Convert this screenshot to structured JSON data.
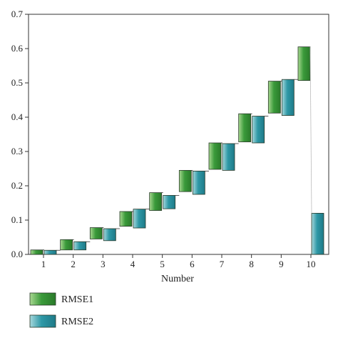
{
  "chart_data": {
    "type": "bar",
    "xlabel": "Number",
    "ylabel": "",
    "categories": [
      "1",
      "2",
      "3",
      "4",
      "5",
      "6",
      "7",
      "8",
      "9",
      "10"
    ],
    "ylim": [
      0,
      0.7
    ],
    "yticks": [
      "0.0",
      "0.1",
      "0.2",
      "0.3",
      "0.4",
      "0.5",
      "0.6",
      "0.7"
    ],
    "grid": false,
    "legend_position": "bottom-left",
    "series": [
      {
        "name": "RMSE1",
        "color": "#3a9a3a",
        "ranges": [
          [
            0.0,
            0.013
          ],
          [
            0.013,
            0.043
          ],
          [
            0.045,
            0.078
          ],
          [
            0.082,
            0.125
          ],
          [
            0.128,
            0.18
          ],
          [
            0.183,
            0.245
          ],
          [
            0.248,
            0.325
          ],
          [
            0.328,
            0.41
          ],
          [
            0.412,
            0.505
          ],
          [
            0.507,
            0.605
          ]
        ]
      },
      {
        "name": "RMSE2",
        "color": "#2e98a6",
        "ranges": [
          [
            0.0,
            0.012
          ],
          [
            0.013,
            0.037
          ],
          [
            0.04,
            0.075
          ],
          [
            0.077,
            0.132
          ],
          [
            0.133,
            0.172
          ],
          [
            0.175,
            0.243
          ],
          [
            0.245,
            0.323
          ],
          [
            0.325,
            0.403
          ],
          [
            0.405,
            0.51
          ],
          [
            0.0,
            0.12
          ]
        ]
      }
    ]
  }
}
